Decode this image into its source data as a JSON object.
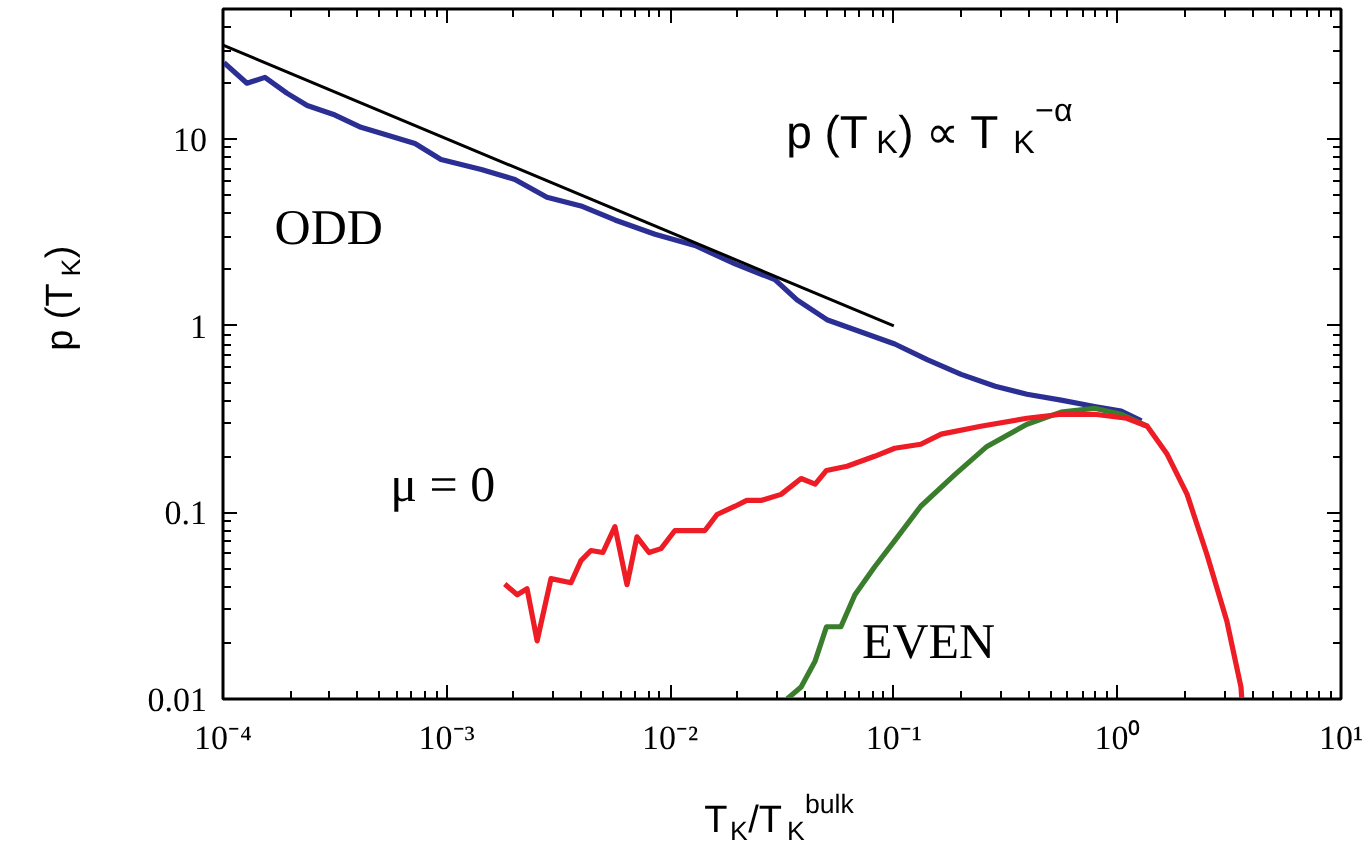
{
  "chart_data": {
    "type": "line",
    "xlabel": "T$_{K}$/T$_{K}$$^{bulk}$",
    "ylabel": "p (T$_{K}$)",
    "annotations": [
      "p (T$_{K}$) ∝ T$_{K}$$^{−α}$"
    ],
    "log": "xy",
    "xlim": [
      0.0001,
      10
    ],
    "ylim": [
      0.01,
      50
    ],
    "xticks": [
      {
        "value": 0.0001,
        "label": "10⁻⁴"
      },
      {
        "value": 0.001,
        "label": "10⁻³"
      },
      {
        "value": 0.01,
        "label": "10⁻²"
      },
      {
        "value": 0.1,
        "label": "10⁻¹"
      },
      {
        "value": 1,
        "label": "10⁰"
      },
      {
        "value": 10,
        "label": "10¹"
      }
    ],
    "yticks": [
      0.01,
      0.1,
      1,
      10
    ],
    "grid": false,
    "marker": "none",
    "line_style": "solid",
    "series": [
      {
        "name": "ODD",
        "color": "#2b2f94",
        "x": [
          0.000101,
          0.000128,
          0.000154,
          0.000193,
          0.000238,
          0.000317,
          0.000414,
          0.000509,
          0.000722,
          0.000944,
          0.00143,
          0.00202,
          0.00281,
          0.00399,
          0.00566,
          0.00855,
          0.0129,
          0.0195,
          0.0294,
          0.0369,
          0.0502,
          0.101,
          0.141,
          0.2,
          0.284,
          0.394,
          0.56,
          0.79,
          1.04,
          1.28
        ],
        "values": [
          25.8,
          20,
          21.5,
          17.7,
          15.2,
          13.5,
          11.6,
          10.8,
          9.5,
          7.8,
          6.9,
          6.1,
          4.9,
          4.4,
          3.7,
          3.1,
          2.7,
          2.15,
          1.77,
          1.38,
          1.08,
          0.8,
          0.66,
          0.55,
          0.475,
          0.43,
          0.4,
          0.37,
          0.35,
          0.31
        ]
      },
      {
        "name": "EVEN",
        "color": "#3a7d2c",
        "x": [
          0.0333,
          0.0385,
          0.0445,
          0.05,
          0.058,
          0.067,
          0.082,
          0.101,
          0.132,
          0.188,
          0.261,
          0.394,
          0.56,
          0.79,
          1.04,
          1.36
        ],
        "values": [
          0.01,
          0.0116,
          0.016,
          0.0244,
          0.0244,
          0.0362,
          0.051,
          0.0706,
          0.108,
          0.16,
          0.226,
          0.297,
          0.345,
          0.362,
          0.336,
          0.29
        ]
      },
      {
        "name": "μ = 0",
        "color": "#ee1c25",
        "x": [
          0.00182,
          0.00207,
          0.00229,
          0.00254,
          0.00293,
          0.0036,
          0.00399,
          0.00442,
          0.005,
          0.00566,
          0.00641,
          0.0071,
          0.00804,
          0.0091,
          0.0105,
          0.0143,
          0.0162,
          0.0195,
          0.022,
          0.0255,
          0.0313,
          0.0385,
          0.0445,
          0.05,
          0.0618,
          0.082,
          0.101,
          0.132,
          0.163,
          0.245,
          0.394,
          0.56,
          0.79,
          1.1,
          1.36,
          1.67,
          2.05,
          2.52,
          3.09,
          3.57,
          3.6
        ],
        "values": [
          0.0413,
          0.0362,
          0.039,
          0.0205,
          0.0442,
          0.042,
          0.0552,
          0.0625,
          0.061,
          0.084,
          0.041,
          0.074,
          0.061,
          0.064,
          0.08,
          0.08,
          0.0975,
          0.108,
          0.116,
          0.116,
          0.125,
          0.152,
          0.142,
          0.168,
          0.177,
          0.2,
          0.221,
          0.232,
          0.263,
          0.29,
          0.32,
          0.336,
          0.336,
          0.32,
          0.29,
          0.205,
          0.125,
          0.059,
          0.026,
          0.0116,
          0.01
        ]
      },
      {
        "color": "#000000",
        "x": [
          0.0001,
          0.1
        ],
        "values": [
          32,
          1
        ]
      }
    ]
  }
}
